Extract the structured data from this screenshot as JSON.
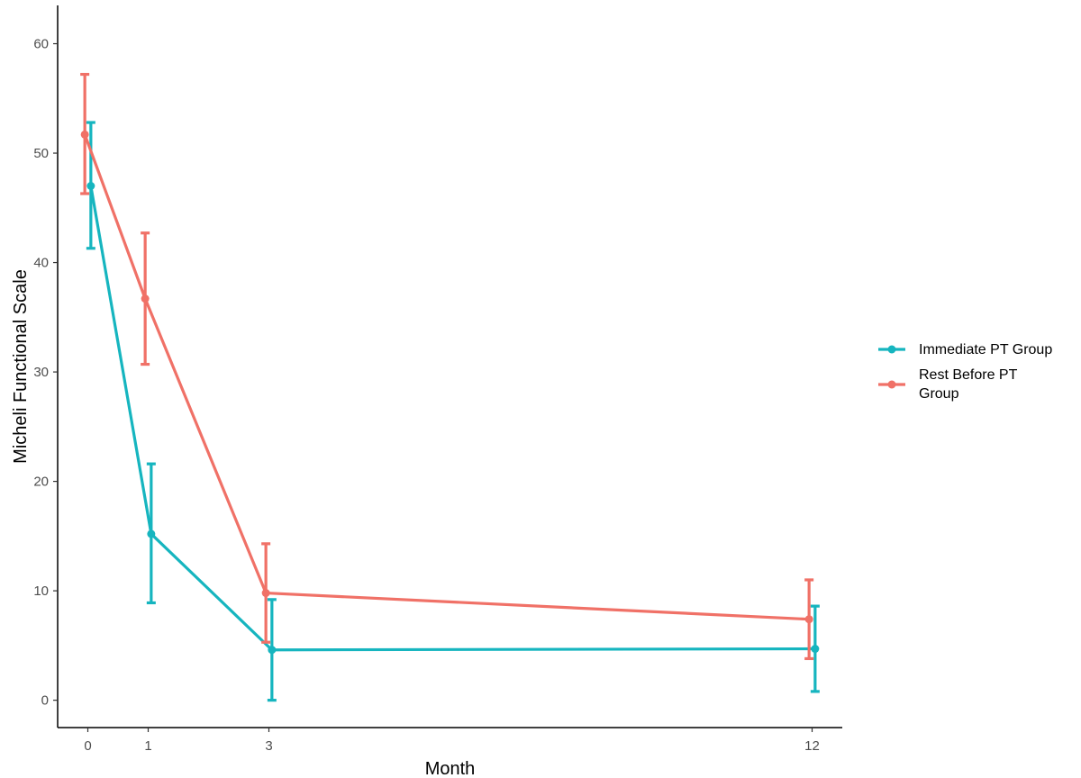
{
  "chart_data": {
    "type": "line",
    "xlabel": "Month",
    "ylabel": "Micheli Functional Scale",
    "x": [
      0,
      1,
      3,
      12
    ],
    "x_ticks": [
      "0",
      "1",
      "3",
      "12"
    ],
    "y_ticks": [
      "0",
      "10",
      "20",
      "30",
      "40",
      "50",
      "60"
    ],
    "ylim": [
      -2.5,
      63.5
    ],
    "xlim": [
      -0.5,
      12.5
    ],
    "grid": false,
    "legend_position": "right",
    "series": [
      {
        "name": "Immediate PT Group",
        "color": "#16b5bf",
        "dodge": 0.05,
        "values": [
          47.0,
          15.2,
          4.6,
          4.7
        ],
        "error_low": [
          41.3,
          8.9,
          0.0,
          0.8
        ],
        "error_high": [
          52.8,
          21.6,
          9.2,
          8.6
        ]
      },
      {
        "name": "Rest Before PT Group",
        "color": "#f07167",
        "dodge": -0.05,
        "values": [
          51.7,
          36.7,
          9.8,
          7.4
        ],
        "error_low": [
          46.3,
          30.7,
          5.3,
          3.8
        ],
        "error_high": [
          57.2,
          42.7,
          14.3,
          11.0
        ]
      }
    ]
  }
}
